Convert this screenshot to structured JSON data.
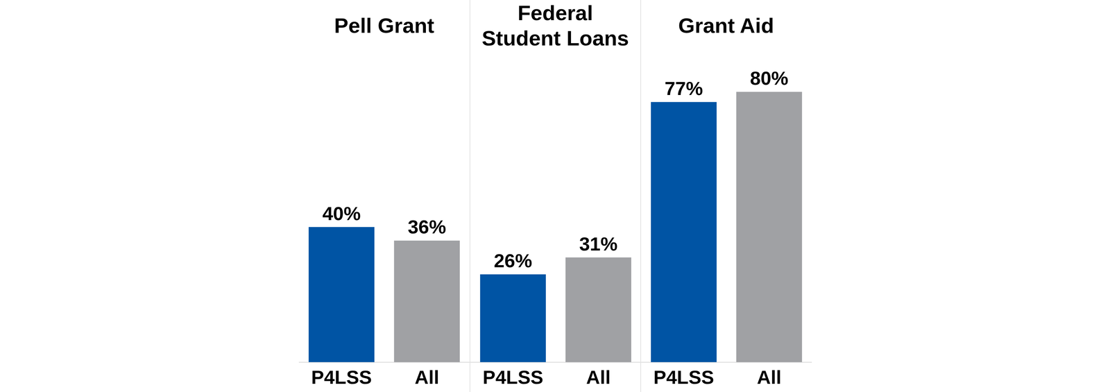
{
  "chart_data": [
    {
      "type": "bar",
      "title": "Pell Grant",
      "categories": [
        "P4LSS",
        "All"
      ],
      "values": [
        40,
        36
      ],
      "value_labels": [
        "40%",
        "36%"
      ],
      "colors": [
        "#0054a4",
        "#a0a1a4"
      ],
      "ylim": [
        0,
        90
      ],
      "grid": false,
      "data_labels": true,
      "tick_labels": "x"
    },
    {
      "type": "bar",
      "title": [
        "Federal",
        "Student Loans"
      ],
      "categories": [
        "P4LSS",
        "All"
      ],
      "values": [
        26,
        31
      ],
      "value_labels": [
        "26%",
        "31%"
      ],
      "colors": [
        "#0054a4",
        "#a0a1a4"
      ],
      "ylim": [
        0,
        90
      ],
      "grid": false,
      "data_labels": true,
      "tick_labels": "x"
    },
    {
      "type": "bar",
      "title": "Grant Aid",
      "categories": [
        "P4LSS",
        "All"
      ],
      "values": [
        77,
        80
      ],
      "value_labels": [
        "77%",
        "80%"
      ],
      "colors": [
        "#0054a4",
        "#a0a1a4"
      ],
      "ylim": [
        0,
        90
      ],
      "grid": false,
      "data_labels": true,
      "tick_labels": "x"
    }
  ]
}
